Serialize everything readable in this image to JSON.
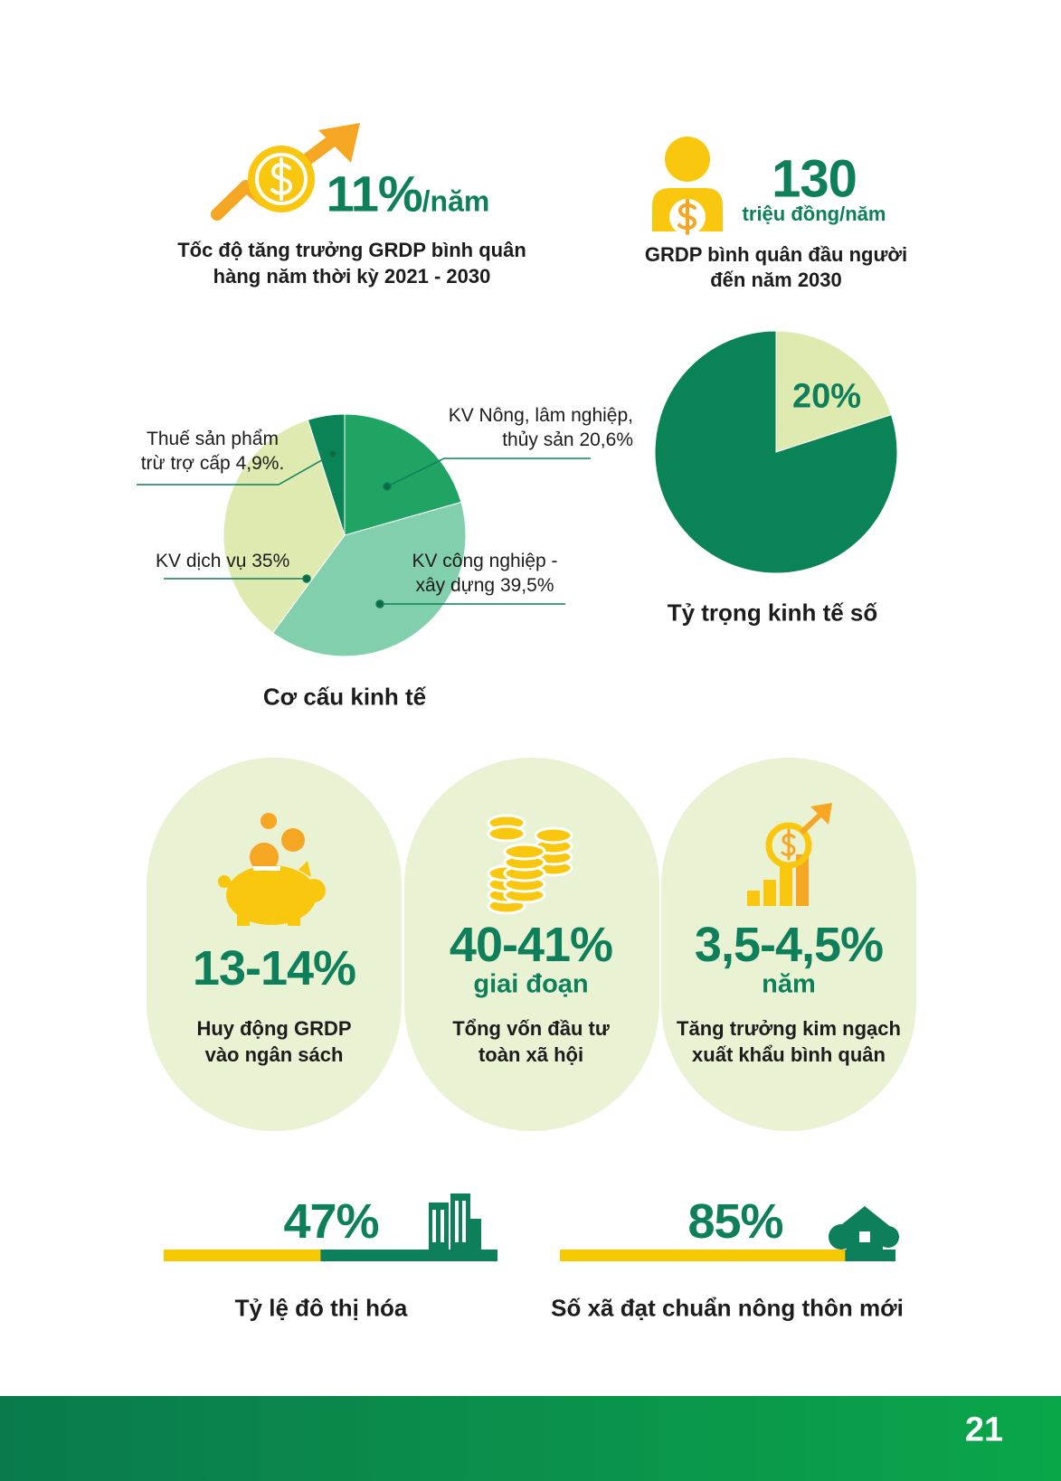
{
  "header_stats": [
    {
      "value": "11%",
      "unit": "/năm",
      "caption": [
        "Tốc độ tăng trưởng GRDP bình quân",
        "hàng năm thời kỳ 2021 - 2030"
      ]
    },
    {
      "value": "130",
      "unit": "triệu đồng/năm",
      "caption": [
        "GRDP bình quân đầu người",
        "đến năm 2030"
      ]
    }
  ],
  "chart_data": [
    {
      "type": "pie",
      "title": "Cơ cấu kinh tế",
      "categories": [
        "KV Nông, lâm nghiệp, thủy sản",
        "KV công nghiệp - xây dựng",
        "KV dịch vụ",
        "Thuế sản phẩm trừ trợ cấp"
      ],
      "values": [
        20.6,
        39.5,
        35,
        4.9
      ],
      "value_labels": [
        "20,6%",
        "39,5%",
        "35%",
        "4,9%."
      ],
      "colors": [
        "#1fa463",
        "#82cfae",
        "#dfeab0",
        "#0a8456"
      ]
    },
    {
      "type": "pie",
      "title": "Tỷ trọng kinh tế số",
      "values": [
        20,
        80
      ],
      "value_labels": [
        "20%",
        null
      ],
      "colors": [
        "#dfeab0",
        "#0a8456"
      ]
    }
  ],
  "cards": [
    {
      "value": "13-14%",
      "caption": [
        "Huy động GRDP",
        "vào ngân sách"
      ]
    },
    {
      "value": "40-41%",
      "unit": "giai đoạn",
      "caption": [
        "Tổng vốn đầu tư",
        "toàn xã hội"
      ]
    },
    {
      "value": "3,5-4,5%",
      "unit": "năm",
      "caption": [
        "Tăng trưởng kim ngạch",
        "xuất khẩu bình quân"
      ]
    }
  ],
  "progress": [
    {
      "value": 47,
      "label": "47%",
      "caption": "Tỷ lệ đô thị hóa"
    },
    {
      "value": 85,
      "label": "85%",
      "caption": "Số xã đạt chuẩn nông thôn mới"
    }
  ],
  "page_number": "21"
}
